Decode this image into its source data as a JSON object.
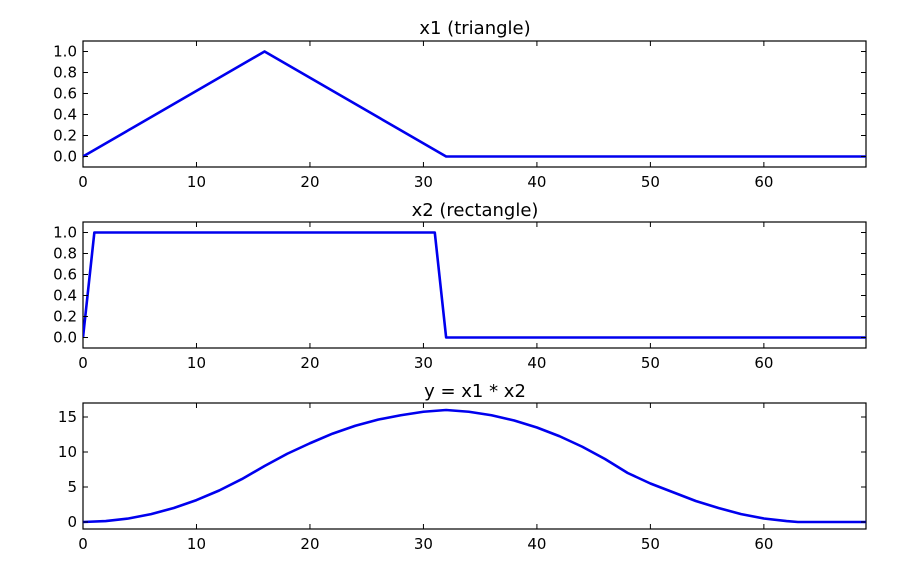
{
  "chart_data": [
    {
      "type": "line",
      "title": "x1 (triangle)",
      "xlabel": "",
      "ylabel": "",
      "xlim": [
        0,
        69
      ],
      "ylim": [
        -0.1,
        1.1
      ],
      "xticks": [
        0,
        10,
        20,
        30,
        40,
        50,
        60
      ],
      "yticks": [
        0.0,
        0.2,
        0.4,
        0.6,
        0.8,
        1.0
      ],
      "xtick_labels": [
        "0",
        "10",
        "20",
        "30",
        "40",
        "50",
        "60"
      ],
      "ytick_labels": [
        "0.0",
        "0.2",
        "0.4",
        "0.6",
        "0.8",
        "1.0"
      ],
      "grid": false,
      "series": [
        {
          "color": "#0000ee",
          "x": [
            0,
            16,
            32,
            69
          ],
          "y": [
            0,
            1,
            0,
            0
          ]
        }
      ]
    },
    {
      "type": "line",
      "title": "x2 (rectangle)",
      "xlabel": "",
      "ylabel": "",
      "xlim": [
        0,
        69
      ],
      "ylim": [
        -0.1,
        1.1
      ],
      "xticks": [
        0,
        10,
        20,
        30,
        40,
        50,
        60
      ],
      "yticks": [
        0.0,
        0.2,
        0.4,
        0.6,
        0.8,
        1.0
      ],
      "xtick_labels": [
        "0",
        "10",
        "20",
        "30",
        "40",
        "50",
        "60"
      ],
      "ytick_labels": [
        "0.0",
        "0.2",
        "0.4",
        "0.6",
        "0.8",
        "1.0"
      ],
      "grid": false,
      "series": [
        {
          "color": "#0000ee",
          "x": [
            0,
            1,
            31,
            32,
            69
          ],
          "y": [
            0,
            1,
            1,
            0,
            0
          ]
        }
      ]
    },
    {
      "type": "line",
      "title": "y = x1 * x2",
      "xlabel": "",
      "ylabel": "",
      "xlim": [
        0,
        69
      ],
      "ylim": [
        -1,
        17
      ],
      "xticks": [
        0,
        10,
        20,
        30,
        40,
        50,
        60
      ],
      "yticks": [
        0,
        5,
        10,
        15
      ],
      "xtick_labels": [
        "0",
        "10",
        "20",
        "30",
        "40",
        "50",
        "60"
      ],
      "ytick_labels": [
        "0",
        "5",
        "10",
        "15"
      ],
      "grid": false,
      "series": [
        {
          "color": "#0000ee",
          "x": [
            0,
            2,
            4,
            6,
            8,
            10,
            12,
            14,
            16,
            18,
            20,
            22,
            24,
            26,
            28,
            30,
            32,
            34,
            36,
            38,
            40,
            42,
            44,
            46,
            48,
            50,
            52,
            54,
            56,
            58,
            60,
            62,
            63,
            69
          ],
          "y": [
            0,
            0.13,
            0.5,
            1.13,
            2.0,
            3.13,
            4.5,
            6.13,
            8.0,
            9.75,
            11.25,
            12.63,
            13.75,
            14.63,
            15.25,
            15.75,
            16.0,
            15.75,
            15.25,
            14.5,
            13.5,
            12.25,
            10.75,
            9.0,
            7.0,
            5.5,
            4.25,
            3.0,
            2.0,
            1.13,
            0.5,
            0.13,
            0,
            0
          ]
        }
      ]
    }
  ]
}
